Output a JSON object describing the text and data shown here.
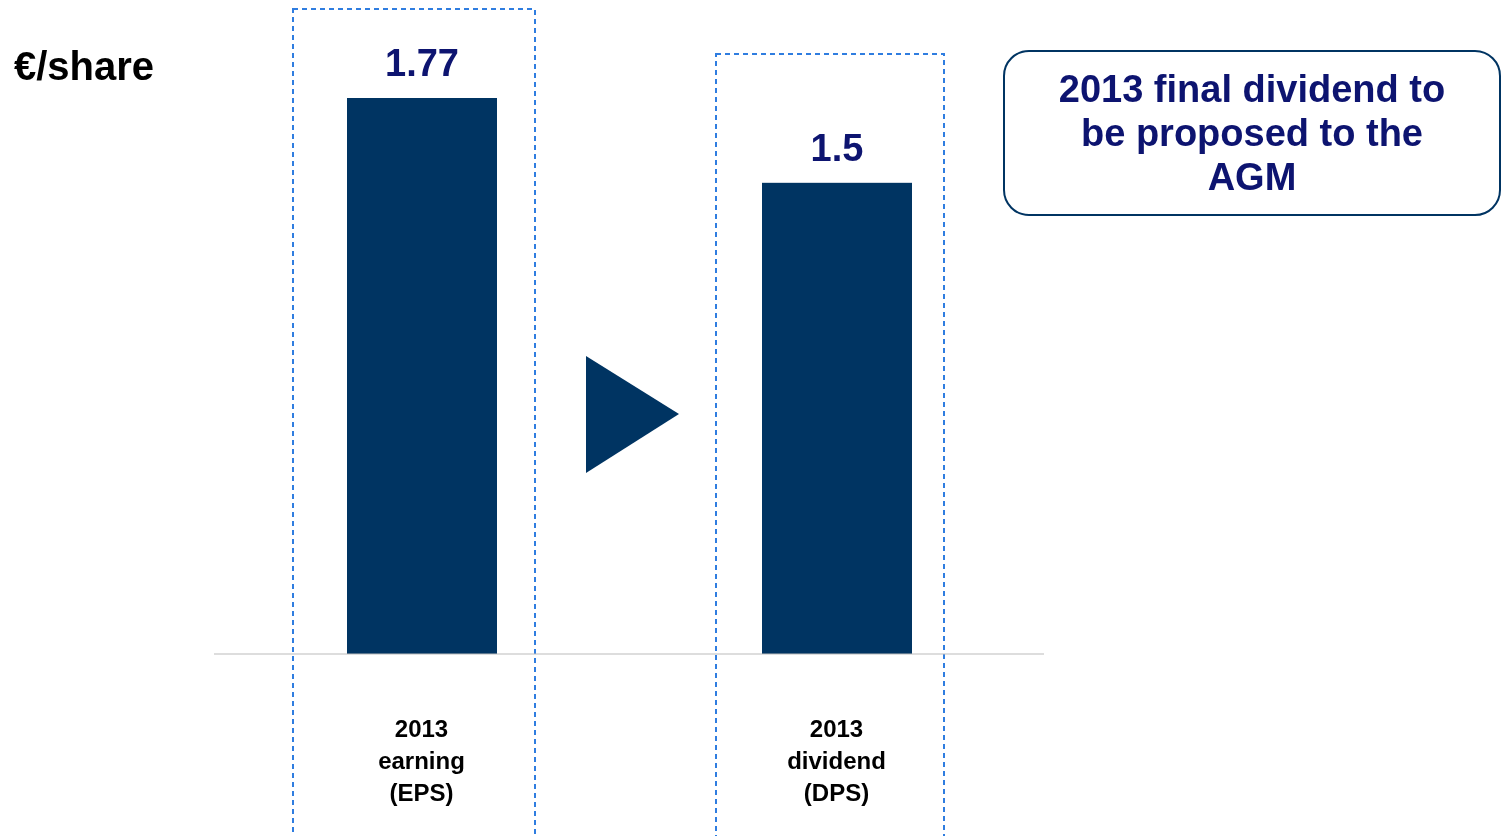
{
  "chart_data": {
    "type": "bar",
    "ylabel": "€/share",
    "categories": [
      "2013 earning (EPS)",
      "2013 dividend (DPS)"
    ],
    "values": [
      1.77,
      1.5
    ],
    "color": "#003462",
    "data_labels": true,
    "annotations": [
      "2013 final dividend to be proposed to the AGM"
    ]
  }
}
